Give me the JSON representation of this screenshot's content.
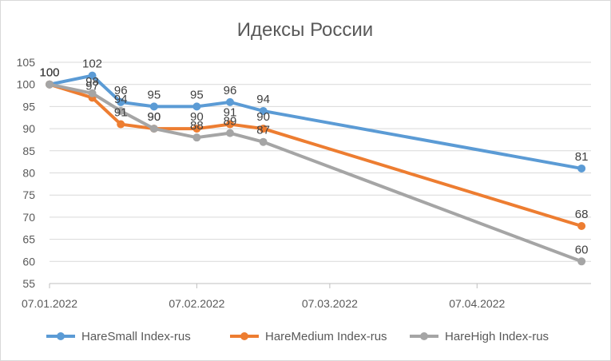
{
  "chart_data": {
    "type": "line",
    "title": "Идексы России",
    "xlabel": "",
    "ylabel": "",
    "ylim": [
      55,
      105
    ],
    "y_ticks": [
      55,
      60,
      65,
      70,
      75,
      80,
      85,
      90,
      95,
      100,
      105
    ],
    "x_ticks": [
      "07.01.2022",
      "07.02.2022",
      "07.03.2022",
      "07.04.2022"
    ],
    "x_tick_dates": [
      "2022-01-07",
      "2022-02-07",
      "2022-03-07",
      "2022-04-07"
    ],
    "x_range": [
      "2022-01-07",
      "2022-05-01"
    ],
    "grid": "horizontal",
    "legend_position": "bottom",
    "series": [
      {
        "name": "HareSmall Index-rus",
        "color": "#5b9bd5",
        "points": [
          {
            "x": "2022-01-07",
            "y": 100,
            "label": "100"
          },
          {
            "x": "2022-01-16",
            "y": 102,
            "label": "102"
          },
          {
            "x": "2022-01-22",
            "y": 96,
            "label": "96"
          },
          {
            "x": "2022-01-29",
            "y": 95,
            "label": "95"
          },
          {
            "x": "2022-02-07",
            "y": 95,
            "label": "95"
          },
          {
            "x": "2022-02-14",
            "y": 96,
            "label": "96"
          },
          {
            "x": "2022-02-21",
            "y": 94,
            "label": "94"
          },
          {
            "x": "2022-04-29",
            "y": 81,
            "label": "81"
          }
        ]
      },
      {
        "name": "HareMedium Index-rus",
        "color": "#ed7d31",
        "points": [
          {
            "x": "2022-01-07",
            "y": 100,
            "label": "100"
          },
          {
            "x": "2022-01-16",
            "y": 97,
            "label": "97"
          },
          {
            "x": "2022-01-22",
            "y": 91,
            "label": "91"
          },
          {
            "x": "2022-01-29",
            "y": 90,
            "label": "90"
          },
          {
            "x": "2022-02-07",
            "y": 90,
            "label": "90"
          },
          {
            "x": "2022-02-14",
            "y": 91,
            "label": "91"
          },
          {
            "x": "2022-02-21",
            "y": 90,
            "label": "90"
          },
          {
            "x": "2022-04-29",
            "y": 68,
            "label": "68"
          }
        ]
      },
      {
        "name": "HareHigh Index-rus",
        "color": "#a5a5a5",
        "points": [
          {
            "x": "2022-01-07",
            "y": 100,
            "label": "100"
          },
          {
            "x": "2022-01-16",
            "y": 98,
            "label": "98"
          },
          {
            "x": "2022-01-22",
            "y": 94,
            "label": "94"
          },
          {
            "x": "2022-01-29",
            "y": 90,
            "label": "90"
          },
          {
            "x": "2022-02-07",
            "y": 88,
            "label": "88"
          },
          {
            "x": "2022-02-14",
            "y": 89,
            "label": "89"
          },
          {
            "x": "2022-02-21",
            "y": 87,
            "label": "87"
          },
          {
            "x": "2022-04-29",
            "y": 60,
            "label": "60"
          }
        ]
      }
    ]
  }
}
